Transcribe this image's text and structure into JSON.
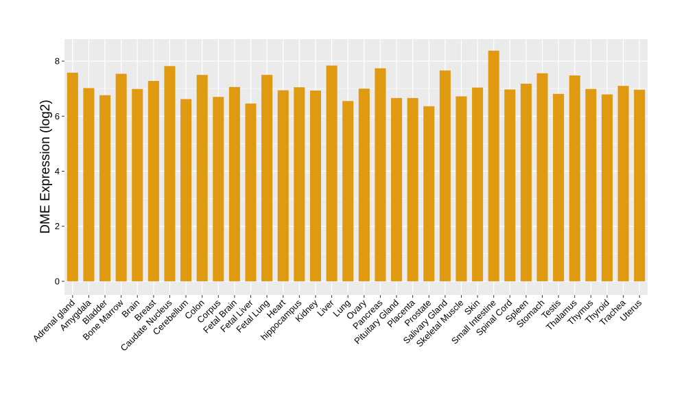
{
  "chart_data": {
    "type": "bar",
    "title": "",
    "xlabel": "",
    "ylabel": "DME Expression (log2)",
    "ylim": [
      -0.5,
      8.8
    ],
    "yticks": [
      0,
      2,
      4,
      6,
      8
    ],
    "grid": true,
    "colors": {
      "bar": "#E09A12",
      "panel": "#EBEBEB",
      "grid": "#FFFFFF",
      "axis_text": "#000000"
    },
    "categories": [
      "Adrenal gland",
      "Amygdala",
      "Bladder",
      "Bone Marrow",
      "Brain",
      "Breast",
      "Caudate Nucleus",
      "Cerebellum",
      "Colon",
      "Corpus",
      "Fetal Brain",
      "Fetal Liver",
      "Fetal Lung",
      "Heart",
      "hippocampus",
      "Kidney",
      "Liver",
      "Lung",
      "Ovary",
      "Pancreas",
      "Pituitary Gland",
      "Placenta",
      "Prostate",
      "Salivary Gland",
      "Skeletal Muscle",
      "Skin",
      "Small Intestine",
      "Spinal Cord",
      "Spleen",
      "Stomach",
      "Testis",
      "Thalamus",
      "Thymus",
      "Thyroid",
      "Trachea",
      "Uterus"
    ],
    "values": [
      7.58,
      7.02,
      6.76,
      7.54,
      6.99,
      7.28,
      7.82,
      6.62,
      7.5,
      6.7,
      7.06,
      6.46,
      7.5,
      6.94,
      7.05,
      6.93,
      7.84,
      6.55,
      7.0,
      7.74,
      6.66,
      6.66,
      6.36,
      7.66,
      6.72,
      7.04,
      8.38,
      6.97,
      7.18,
      7.56,
      6.81,
      7.48,
      6.99,
      6.79,
      7.1,
      6.96
    ]
  }
}
